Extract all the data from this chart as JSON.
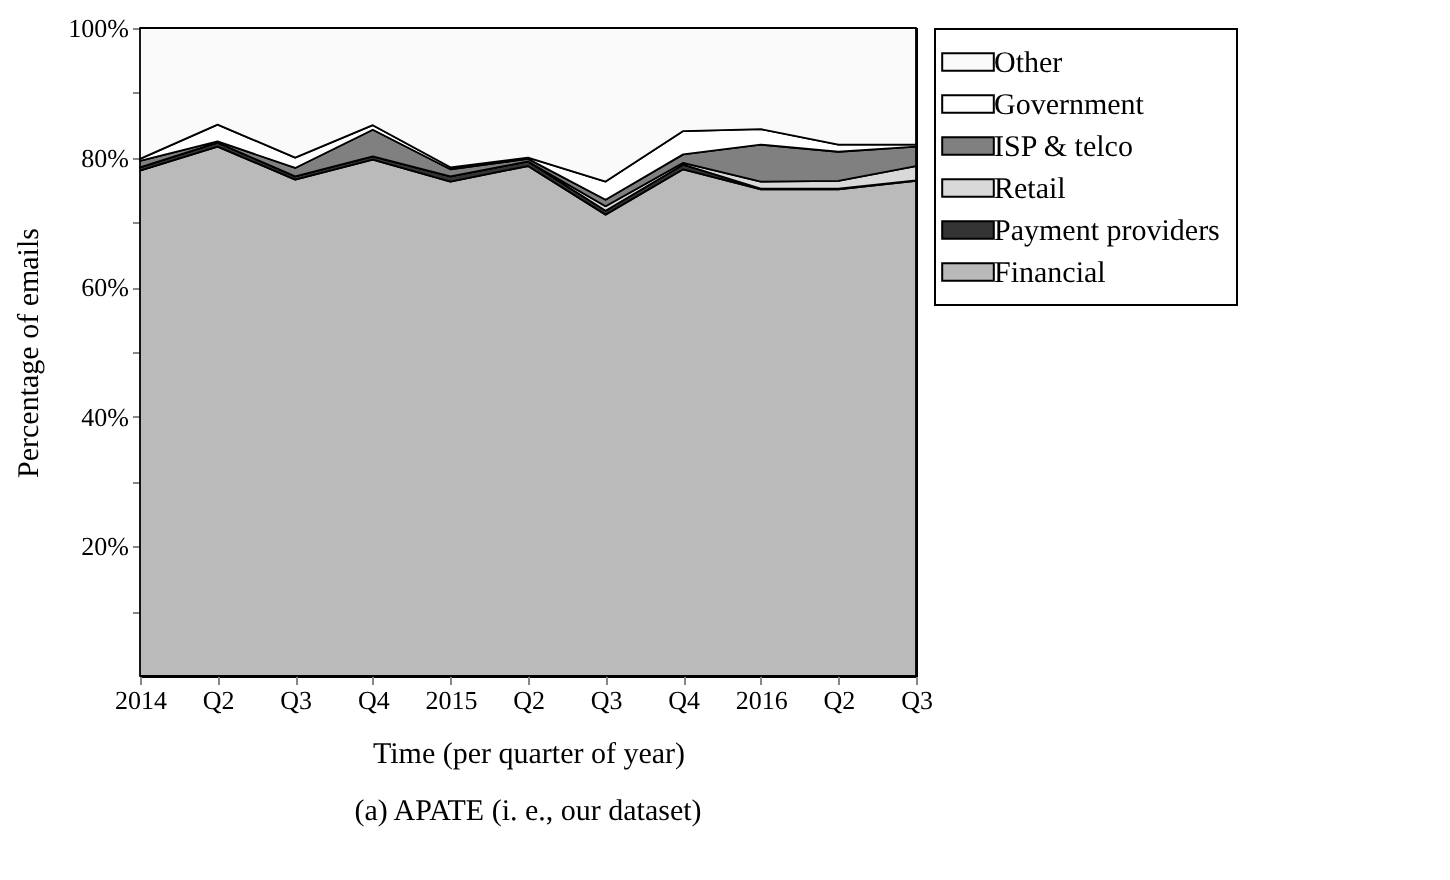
{
  "chart_data": {
    "type": "area",
    "stacked": true,
    "xlabel": "Time (per quarter of year)",
    "ylabel": "Percentage of emails",
    "annotations": [
      "(a) APATE (i. e., our dataset)"
    ],
    "categories": [
      "2014",
      "Q2",
      "Q3",
      "Q4",
      "2015",
      "Q2",
      "Q3",
      "Q4",
      "2016",
      "Q2",
      "Q3"
    ],
    "series": [
      {
        "name": "Financial",
        "color": "#bababa",
        "values": [
          78,
          81.7,
          76.6,
          79.7,
          76.3,
          78.7,
          71.2,
          78.2,
          75.1,
          75.1,
          76.4
        ]
      },
      {
        "name": "Payment providers",
        "color": "#333333",
        "values": [
          0.5,
          0.6,
          0.5,
          0.5,
          0.8,
          0.7,
          0.6,
          0.7,
          0.1,
          0.1,
          0.1
        ]
      },
      {
        "name": "Retail",
        "color": "#d9d9d9",
        "values": [
          0,
          0,
          0,
          0,
          0,
          0,
          0.7,
          0.3,
          1.1,
          1.2,
          2.2
        ]
      },
      {
        "name": "ISP & telco",
        "color": "#808080",
        "values": [
          1,
          0.2,
          1.3,
          4.1,
          1.1,
          0.4,
          1,
          1.3,
          5.7,
          4.5,
          3
        ]
      },
      {
        "name": "Government",
        "color": "#ffffff",
        "values": [
          0.3,
          2.6,
          1.6,
          0.7,
          0.3,
          0.2,
          2.8,
          3.6,
          2.4,
          1.1,
          0.3
        ]
      },
      {
        "name": "Other",
        "color": "#fafafa",
        "values": [
          20.2,
          14.9,
          20,
          15,
          21.5,
          20,
          23.7,
          15.9,
          15.6,
          18,
          18
        ]
      }
    ],
    "ylim": [
      0,
      100
    ],
    "yticks": [
      {
        "value": 10,
        "label": null
      },
      {
        "value": 20,
        "label": "20%"
      },
      {
        "value": 30,
        "label": null
      },
      {
        "value": 40,
        "label": "40%"
      },
      {
        "value": 50,
        "label": null
      },
      {
        "value": 60,
        "label": "60%"
      },
      {
        "value": 70,
        "label": null
      },
      {
        "value": 80,
        "label": "80%"
      },
      {
        "value": 90,
        "label": null
      },
      {
        "value": 100,
        "label": "100%"
      }
    ],
    "legend": "right",
    "grid": false
  }
}
